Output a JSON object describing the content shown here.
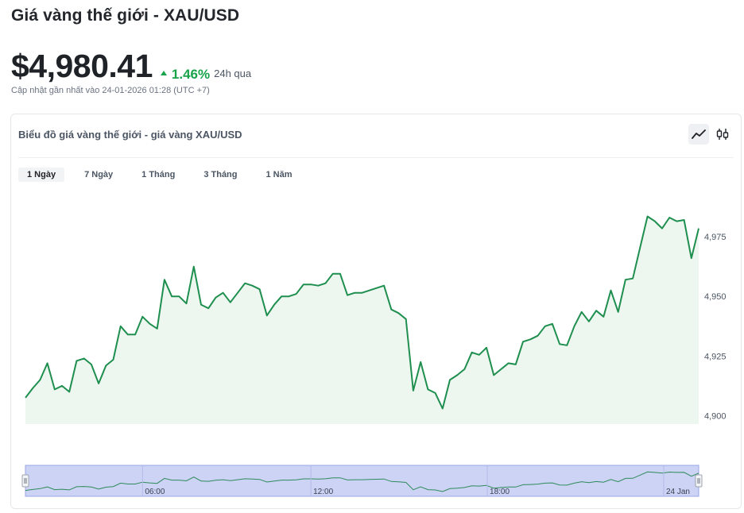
{
  "header": {
    "title": "Giá vàng thế giới - XAU/USD",
    "price": "$4,980.41",
    "change": "1.46%",
    "period": "24h qua",
    "updated": "Cập nhật gần nhất vào 24-01-2026 01:28 (UTC +7)"
  },
  "card": {
    "title": "Biểu đồ giá vàng thế giới - giá vàng XAU/USD",
    "chart_types": [
      {
        "name": "line-chart-icon",
        "active": true
      },
      {
        "name": "candlestick-icon",
        "active": false
      }
    ],
    "ranges": [
      {
        "label": "1 Ngày",
        "active": true
      },
      {
        "label": "7 Ngày",
        "active": false
      },
      {
        "label": "1 Tháng",
        "active": false
      },
      {
        "label": "3 Tháng",
        "active": false
      },
      {
        "label": "1 Năm",
        "active": false
      }
    ]
  },
  "colors": {
    "line": "#1e8f4e",
    "area": "#eef6f0",
    "navigator_bg": "#ccd3f5",
    "accent_up": "#16a34a"
  },
  "chart_data": {
    "type": "area",
    "title": "",
    "xlabel": "",
    "ylabel": "",
    "ylim": [
      4896.5,
      4991
    ],
    "yticks": [
      4900,
      4925,
      4950,
      4975
    ],
    "ytick_labels": [
      "4,900",
      "4,925",
      "4,950",
      "4,975"
    ],
    "navigator_xticks": [
      "06:00",
      "12:00",
      "18:00",
      "24 Jan"
    ],
    "series": [
      {
        "values": [
          4907.5,
          4911.5,
          4915.0,
          4922.0,
          4911.0,
          4912.5,
          4910.0,
          4923.0,
          4924.0,
          4921.5,
          4913.5,
          4921.0,
          4923.5,
          4937.5,
          4934.0,
          4934.0,
          4941.5,
          4938.5,
          4936.5,
          4957.0,
          4950.0,
          4950.0,
          4947.0,
          4962.5,
          4946.5,
          4945.0,
          4949.5,
          4951.5,
          4947.5,
          4951.5,
          4955.5,
          4954.5,
          4953.0,
          4942.0,
          4946.5,
          4950.0,
          4950.0,
          4951.0,
          4955.0,
          4955.0,
          4954.5,
          4955.5,
          4959.5,
          4959.5,
          4950.5,
          4951.5,
          4951.5,
          4952.5,
          4953.5,
          4954.5,
          4944.5,
          4943.0,
          4940.5,
          4910.5,
          4922.5,
          4911.0,
          4909.5,
          4903.0,
          4915.0,
          4917.0,
          4919.5,
          4926.5,
          4925.5,
          4928.5,
          4917.0,
          4919.5,
          4922.0,
          4921.5,
          4931.0,
          4932.0,
          4933.5,
          4937.5,
          4938.5,
          4930.0,
          4929.5,
          4937.5,
          4943.5,
          4939.5,
          4944.0,
          4941.5,
          4952.5,
          4943.5,
          4957.0,
          4957.5,
          4970.5,
          4983.5,
          4981.5,
          4978.5,
          4983.0,
          4981.5,
          4982.0,
          4966.0,
          4978.5
        ]
      }
    ]
  }
}
